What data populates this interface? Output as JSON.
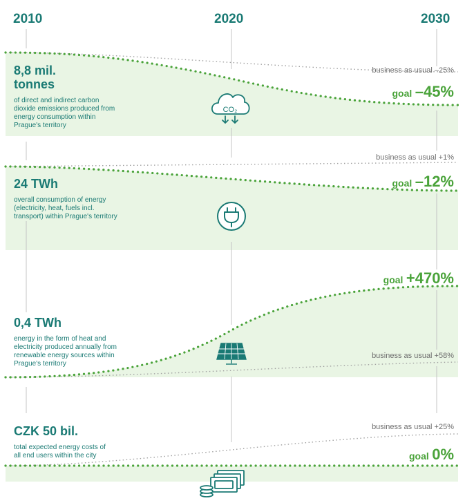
{
  "years": [
    "2010",
    "2020",
    "2030"
  ],
  "colors": {
    "teal": "#1a7a74",
    "green": "#4aa33a",
    "band": "#e9f5e4",
    "gray": "#6e6e6e"
  },
  "blocks": [
    {
      "value": "8,8 mil.",
      "value2": "tonnes",
      "desc": [
        "of direct and indirect carbon",
        "dioxide emissions produced from",
        "energy consumption within",
        "Prague's territory"
      ],
      "bau": "business as usual –25%",
      "goal_word": "goal",
      "goal_value": "–45%",
      "icon": "co2-cloud-icon",
      "icon_text": "CO₂"
    },
    {
      "value": "24 TWh",
      "desc": [
        "overall consumption of energy",
        "(electricity, heat, fuels incl.",
        "transport) within Prague's territory"
      ],
      "bau": "business as usual +1%",
      "goal_word": "goal",
      "goal_value": "–12%",
      "icon": "power-plug-icon"
    },
    {
      "value": "0,4 TWh",
      "desc": [
        "energy in the form of heat and",
        "electricity produced annually from",
        "renewable energy sources within",
        "Prague's territory"
      ],
      "bau": "business as usual +58%",
      "goal_word": "goal",
      "goal_value": "+470%",
      "icon": "solar-panel-icon"
    },
    {
      "value": "CZK 50 bil.",
      "desc": [
        "total expected energy costs of",
        "all end users within the city"
      ],
      "bau": "business as usual +25%",
      "goal_word": "goal",
      "goal_value": "0%",
      "icon": "money-stack-icon"
    }
  ],
  "chart_data": {
    "type": "line",
    "x": [
      "2010",
      "2020",
      "2030"
    ],
    "panels": [
      {
        "metric": "8,8 mil. tonnes",
        "series": [
          {
            "name": "business as usual",
            "values": [
              null,
              null,
              -25
            ]
          },
          {
            "name": "goal",
            "values": [
              null,
              null,
              -45
            ]
          }
        ]
      },
      {
        "metric": "24 TWh",
        "series": [
          {
            "name": "business as usual",
            "values": [
              null,
              null,
              1
            ]
          },
          {
            "name": "goal",
            "values": [
              null,
              null,
              -12
            ]
          }
        ]
      },
      {
        "metric": "0,4 TWh",
        "series": [
          {
            "name": "business as usual",
            "values": [
              null,
              null,
              58
            ]
          },
          {
            "name": "goal",
            "values": [
              null,
              null,
              470
            ]
          }
        ]
      },
      {
        "metric": "CZK 50 bil.",
        "series": [
          {
            "name": "business as usual",
            "values": [
              null,
              null,
              25
            ]
          },
          {
            "name": "goal",
            "values": [
              null,
              null,
              0
            ]
          }
        ]
      }
    ]
  }
}
